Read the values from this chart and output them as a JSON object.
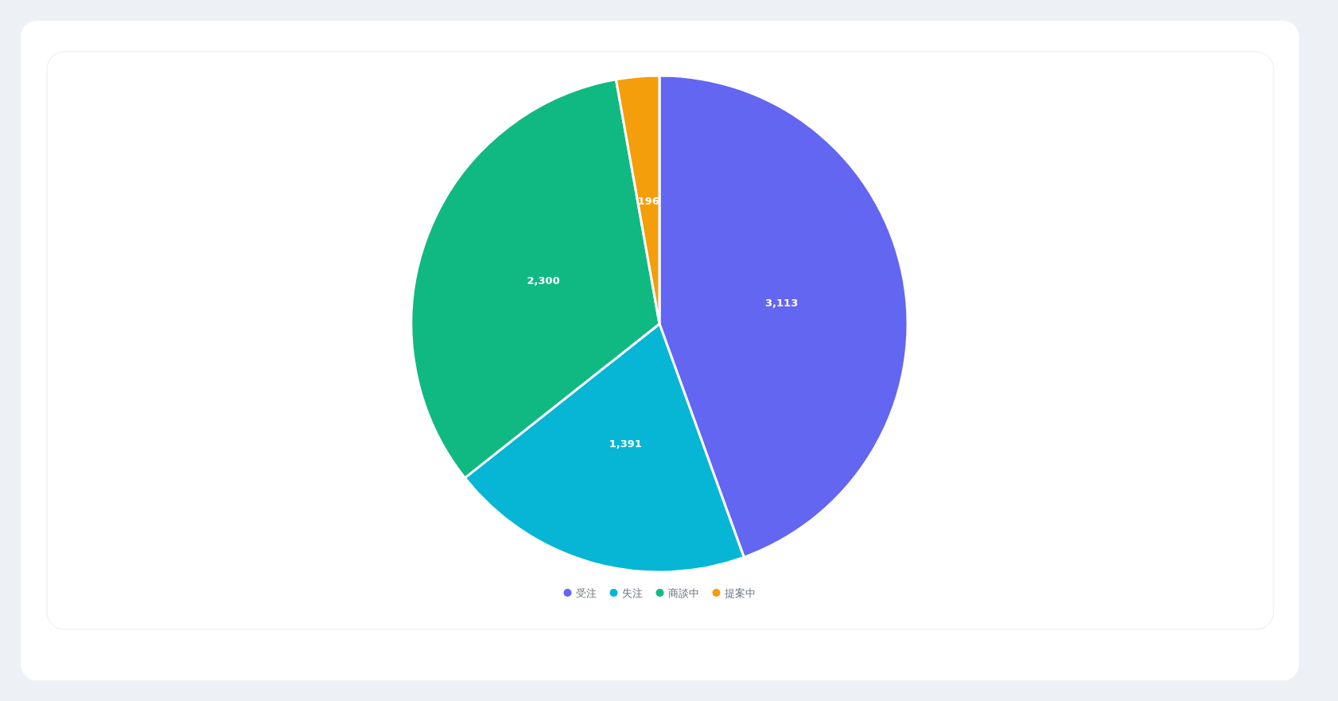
{
  "chart_data": {
    "type": "pie",
    "categories": [
      "受注",
      "失注",
      "商談中",
      "提案中"
    ],
    "values": [
      3113,
      1391,
      2300,
      196
    ],
    "colors": [
      "#6366f1",
      "#06b6d4",
      "#10b981",
      "#f59e0b"
    ],
    "value_labels": [
      "3,113",
      "1,391",
      "2,300",
      "196"
    ],
    "legend": "bottom"
  }
}
